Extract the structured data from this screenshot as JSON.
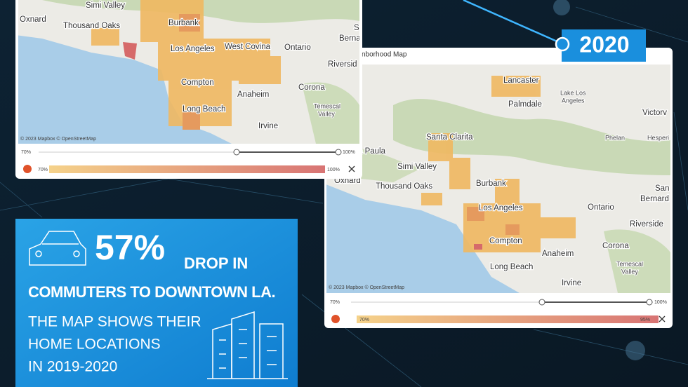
{
  "map_left": {
    "place_labels": [
      "Simi Valley",
      "Oxnard",
      "Thousand Oaks",
      "Burbank",
      "S",
      "Berna",
      "Los Angeles",
      "West Covina",
      "Ontario",
      "Riversid",
      "Compton",
      "Anaheim",
      "Corona",
      "Temescal",
      "Valley",
      "Long Beach",
      "Irvine"
    ],
    "attribution": "© 2023 Mapbox © OpenStreetMap",
    "slider_min": "70%",
    "slider_max": "100%",
    "legend_min": "70%",
    "legend_max": "100%"
  },
  "map_right": {
    "badge": "2020",
    "title": "nborhood Map",
    "place_labels": [
      "Lancaster",
      "Lake Los",
      "Angeles",
      "Palmdale",
      "Victorv",
      "Santa Clarita",
      "Phelan",
      "Hesperi",
      "a Paula",
      "Simi Valley",
      "Oxnard",
      "Thousand Oaks",
      "Burbank",
      "San",
      "Bernard",
      "Los Angeles",
      "Ontario",
      "Riverside",
      "Compton",
      "Corona",
      "Anaheim",
      "Temescal",
      "Valley",
      "Long Beach",
      "Irvine"
    ],
    "attribution": "© 2023 Mapbox © OpenStreetMap",
    "slider_min": "70%",
    "slider_max": "100%",
    "legend_min": "70%",
    "legend_max": "95%"
  },
  "callout": {
    "figure": "57%",
    "headline_end": "DROP IN",
    "headline_line2": "COMMUTERS TO DOWNTOWN LA.",
    "body": [
      "THE MAP SHOWS THEIR",
      "HOME LOCATIONS",
      "IN 2019-2020"
    ]
  }
}
